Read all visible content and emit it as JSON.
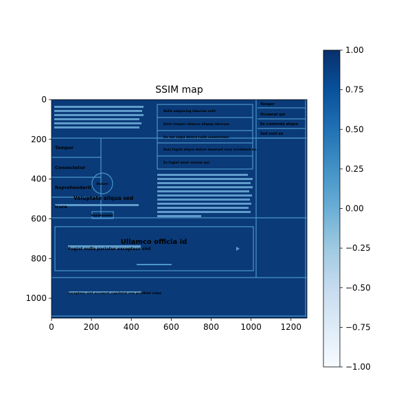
{
  "chart_data": {
    "type": "heatmap",
    "title": "SSIM map",
    "x_axis": {
      "range": [
        0,
        1280
      ],
      "ticks": [
        0,
        200,
        400,
        600,
        800,
        1000,
        1200
      ],
      "tick_labels": [
        "0",
        "200",
        "400",
        "600",
        "800",
        "1000",
        "1200"
      ]
    },
    "y_axis": {
      "range": [
        1100,
        0
      ],
      "inverted": true,
      "ticks": [
        0,
        200,
        400,
        600,
        800,
        1000
      ],
      "tick_labels": [
        "0",
        "200",
        "400",
        "600",
        "800",
        "1000"
      ]
    },
    "colorbar": {
      "colormap": "Blues",
      "range": [
        -1.0,
        1.0
      ],
      "ticks": [
        1.0,
        0.75,
        0.5,
        0.25,
        0.0,
        -0.25,
        -0.5,
        -0.75,
        -1.0
      ],
      "tick_labels": [
        "1.00",
        "0.75",
        "0.50",
        "0.25",
        "0.00",
        "−0.25",
        "−0.50",
        "−0.75",
        "−1.00"
      ],
      "color_high": "#08306b",
      "color_low": "#f7fbff"
    },
    "background_value": 0.95,
    "structure_value": 0.25,
    "map_colors": {
      "background": "#0b3a78",
      "structure_line": "#4a97cc",
      "structure_fill": "#6aa8d6"
    },
    "embedded_text": {
      "heading_center": "Ullamco officia id",
      "left_labels": [
        "Tempor",
        "Consectetur",
        "Reprehenderit",
        "Irure",
        "Voluptate aliqua sed"
      ],
      "right_labels": [
        "Tempor",
        "Occaecat qui",
        "Ea commodo aliqua",
        "Sed sunt ea"
      ],
      "circle_label": "Dolore",
      "button_label": "Reprehenderit",
      "wide_label": "Fugiat nulla pariatur excepteur sint",
      "footer_text": "Excepteur sint occaecat cupidatat non proident culpa",
      "row_labels": [
        "Nulla adipiscing laborum velit.",
        "Enim tempor ullamco aliquip laborum.",
        "Do est culpa dolore nulla consectetur.",
        "Duis fugiat aliqua dolore deserunt esse incididunt ea.",
        "Ex fugiat amet veniam qui."
      ]
    }
  }
}
